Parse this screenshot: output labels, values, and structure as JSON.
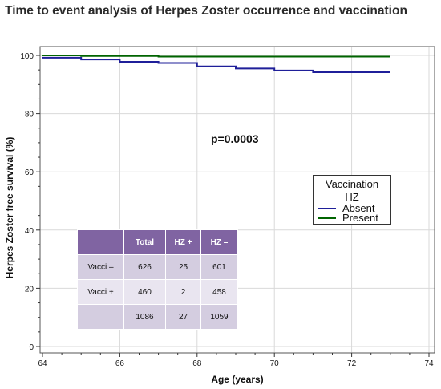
{
  "title": "Time to event analysis of Herpes Zoster occurrence and vaccination",
  "annotation": "p=0.0003",
  "legend": {
    "title": "Vaccination",
    "subtitle": "HZ",
    "entries": [
      "Absent",
      "Present"
    ]
  },
  "table": {
    "header": [
      "",
      "Total",
      "HZ +",
      "HZ –"
    ],
    "rows": [
      [
        "Vacci –",
        "626",
        "25",
        "601"
      ],
      [
        "Vacci +",
        "460",
        "2",
        "458"
      ],
      [
        "",
        "1086",
        "27",
        "1059"
      ]
    ]
  },
  "chart_data": {
    "type": "line",
    "title": "Time to event analysis of Herpes Zoster occurrence and vaccination",
    "xlabel": "Age (years)",
    "ylabel": "Herpes Zoster free survival (%)",
    "xlim": [
      64,
      74
    ],
    "ylim": [
      0,
      100
    ],
    "xticks": [
      64,
      66,
      68,
      70,
      72,
      74
    ],
    "yticks": [
      0,
      20,
      40,
      60,
      80,
      100
    ],
    "grid": true,
    "legend_position": "right",
    "series": [
      {
        "name": "Absent",
        "color": "#1f1f99",
        "step": true,
        "x": [
          64,
          65,
          66,
          67,
          68,
          69,
          70,
          71,
          73
        ],
        "y": [
          99.2,
          98.6,
          97.8,
          97.4,
          96.2,
          95.5,
          94.8,
          94.2,
          94.2
        ]
      },
      {
        "name": "Present",
        "color": "#006400",
        "step": true,
        "x": [
          64,
          65,
          67,
          73
        ],
        "y": [
          100,
          99.8,
          99.6,
          99.6
        ]
      }
    ]
  }
}
